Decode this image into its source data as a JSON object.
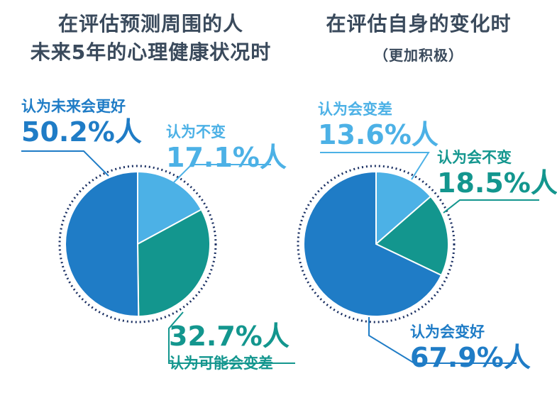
{
  "colors": {
    "dark_blue": "#1f7cc6",
    "light_blue": "#4cb1e6",
    "teal": "#13968e",
    "navy": "#1b3063",
    "title": "#3a4a5c"
  },
  "chart_data": [
    {
      "type": "pie",
      "title_line1": "在评估预测周围的人",
      "title_line2": "未来5年的心理健康状况时",
      "slices": [
        {
          "label": "认为不变",
          "value": 17.1,
          "value_text": "17.1%人",
          "color": "#4cb1e6"
        },
        {
          "label": "认为可能会变差",
          "value": 32.7,
          "value_text": "32.7%人",
          "color": "#13968e"
        },
        {
          "label": "认为未来会更好",
          "value": 50.2,
          "value_text": "50.2%人",
          "color": "#1f7cc6"
        }
      ]
    },
    {
      "type": "pie",
      "title": "在评估自身的变化时",
      "subtitle": "（更加积极）",
      "slices": [
        {
          "label": "认为会变差",
          "value": 13.6,
          "value_text": "13.6%人",
          "color": "#4cb1e6"
        },
        {
          "label": "认为会不变",
          "value": 18.5,
          "value_text": "18.5%人",
          "color": "#13968e"
        },
        {
          "label": "认为会变好",
          "value": 67.9,
          "value_text": "67.9%人",
          "color": "#1f7cc6"
        }
      ]
    }
  ]
}
